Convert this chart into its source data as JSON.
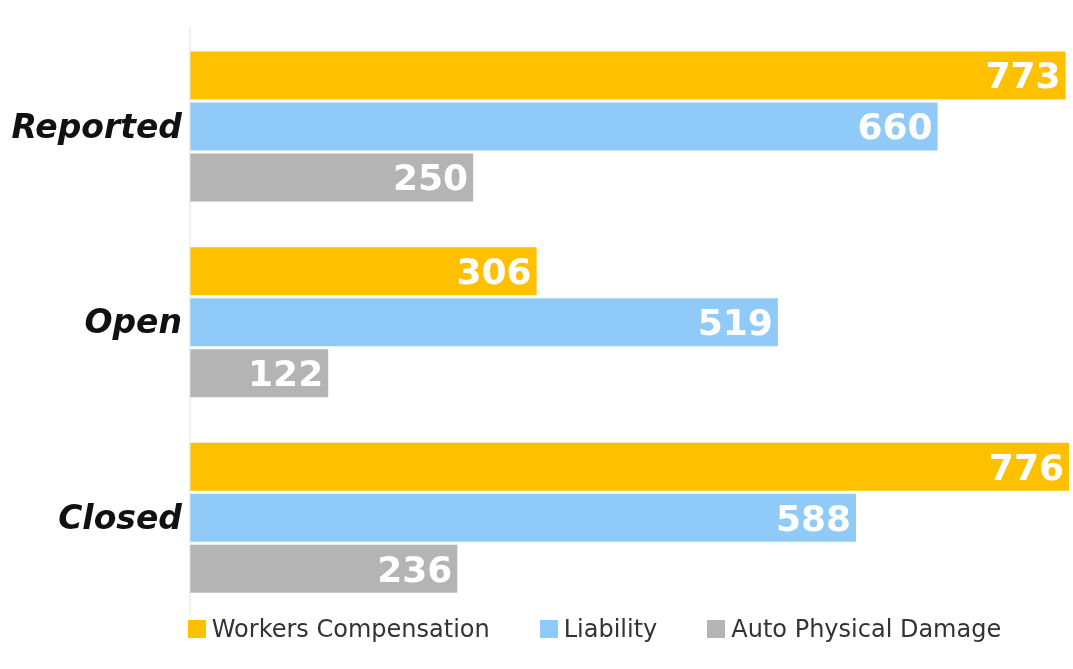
{
  "chart_data": {
    "type": "bar",
    "orientation": "horizontal",
    "categories": [
      "Reported",
      "Open",
      "Closed"
    ],
    "series": [
      {
        "name": "Workers Compensation",
        "color": "#ffc000",
        "values": [
          773,
          306,
          776
        ]
      },
      {
        "name": "Liability",
        "color": "#8fcaf9",
        "values": [
          660,
          519,
          588
        ]
      },
      {
        "name": "Auto Physical Damage",
        "color": "#b4b4b4",
        "values": [
          250,
          122,
          236
        ]
      }
    ],
    "data_labels": true,
    "legend": "bottom"
  }
}
